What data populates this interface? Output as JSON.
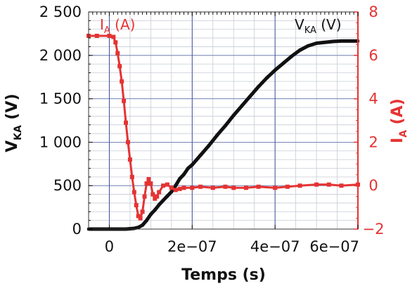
{
  "chart_data": {
    "type": "line",
    "x_label": "Temps (s)",
    "x_range": [
      -5e-08,
      6e-07
    ],
    "x_ticks": [
      0,
      2e-07,
      4e-07,
      6e-07
    ],
    "x_tick_labels": [
      "0",
      "2e−07",
      "4e−07",
      "6e−07"
    ],
    "grid": true,
    "y_left": {
      "label_main": "V",
      "label_sub": "KA",
      "label_unit": " (V)",
      "range": [
        0,
        2500
      ],
      "ticks": [
        0,
        500,
        1000,
        1500,
        2000,
        2500
      ],
      "tick_labels": [
        "0",
        "500",
        "1 000",
        "1 500",
        "2 000",
        "2 500"
      ],
      "color": "#111111"
    },
    "y_right": {
      "label_main": "I",
      "label_sub": "A",
      "label_unit": " (A)",
      "range": [
        -2,
        8
      ],
      "ticks": [
        -2,
        0,
        2,
        4,
        6,
        8
      ],
      "tick_labels": [
        "−2",
        "0",
        "2",
        "4",
        "6",
        "8"
      ],
      "color": "#e53333"
    },
    "series": [
      {
        "name": "VKA (V)",
        "name_main": "V",
        "name_sub": "KA",
        "name_unit": " (V)",
        "axis": "left",
        "color": "#111111",
        "marker": "square",
        "points": [
          [
            -5e-08,
            0
          ],
          [
            0,
            0
          ],
          [
            4e-08,
            0
          ],
          [
            6e-08,
            8
          ],
          [
            7e-08,
            20
          ],
          [
            8e-08,
            45
          ],
          [
            9e-08,
            100
          ],
          [
            1e-07,
            170
          ],
          [
            1.1e-07,
            220
          ],
          [
            1.2e-07,
            280
          ],
          [
            1.3e-07,
            330
          ],
          [
            1.4e-07,
            380
          ],
          [
            1.5e-07,
            430
          ],
          [
            1.6e-07,
            500
          ],
          [
            1.7e-07,
            580
          ],
          [
            1.8e-07,
            630
          ],
          [
            1.9e-07,
            700
          ],
          [
            2e-07,
            740
          ],
          [
            2.2e-07,
            850
          ],
          [
            2.4e-07,
            960
          ],
          [
            2.6e-07,
            1080
          ],
          [
            2.8e-07,
            1190
          ],
          [
            3e-07,
            1310
          ],
          [
            3.2e-07,
            1420
          ],
          [
            3.4e-07,
            1530
          ],
          [
            3.6e-07,
            1640
          ],
          [
            3.8e-07,
            1740
          ],
          [
            4e-07,
            1830
          ],
          [
            4.2e-07,
            1910
          ],
          [
            4.4e-07,
            1990
          ],
          [
            4.6e-07,
            2060
          ],
          [
            4.8e-07,
            2110
          ],
          [
            5e-07,
            2140
          ],
          [
            5.2e-07,
            2150
          ],
          [
            5.4e-07,
            2160
          ],
          [
            5.6e-07,
            2165
          ],
          [
            5.8e-07,
            2165
          ],
          [
            6e-07,
            2165
          ]
        ]
      },
      {
        "name": "IA (A)",
        "name_main": "I",
        "name_sub": "A",
        "name_unit": " (A)",
        "axis": "right",
        "color": "#e53333",
        "marker": "square",
        "points": [
          [
            -5e-08,
            6.9
          ],
          [
            -3e-08,
            6.9
          ],
          [
            0,
            6.9
          ],
          [
            1e-08,
            6.85
          ],
          [
            1.5e-08,
            6.6
          ],
          [
            2e-08,
            6.1
          ],
          [
            2.5e-08,
            5.5
          ],
          [
            3e-08,
            4.8
          ],
          [
            3.5e-08,
            3.9
          ],
          [
            4e-08,
            2.9
          ],
          [
            4.5e-08,
            2.0
          ],
          [
            5e-08,
            1.2
          ],
          [
            5.5e-08,
            0.4
          ],
          [
            6e-08,
            -0.3
          ],
          [
            6.5e-08,
            -0.9
          ],
          [
            7e-08,
            -1.4
          ],
          [
            7.5e-08,
            -1.5
          ],
          [
            8e-08,
            -1.2
          ],
          [
            8.5e-08,
            -0.5
          ],
          [
            9e-08,
            0.1
          ],
          [
            9.5e-08,
            0.3
          ],
          [
            1e-07,
            0.1
          ],
          [
            1.05e-07,
            -0.4
          ],
          [
            1.1e-07,
            -0.6
          ],
          [
            1.15e-07,
            -0.5
          ],
          [
            1.2e-07,
            -0.3
          ],
          [
            1.3e-07,
            0.0
          ],
          [
            1.4e-07,
            0.05
          ],
          [
            1.5e-07,
            -0.1
          ],
          [
            1.6e-07,
            -0.2
          ],
          [
            1.7e-07,
            -0.15
          ],
          [
            1.8e-07,
            -0.1
          ],
          [
            2e-07,
            -0.1
          ],
          [
            2.2e-07,
            -0.05
          ],
          [
            2.5e-07,
            -0.1
          ],
          [
            2.8e-07,
            -0.05
          ],
          [
            3e-07,
            -0.1
          ],
          [
            3.3e-07,
            -0.1
          ],
          [
            3.6e-07,
            -0.05
          ],
          [
            4e-07,
            -0.1
          ],
          [
            4.3e-07,
            -0.05
          ],
          [
            4.6e-07,
            0.0
          ],
          [
            5e-07,
            0.05
          ],
          [
            5.3e-07,
            0.05
          ],
          [
            5.6e-07,
            0.0
          ],
          [
            6e-07,
            0.05
          ]
        ]
      }
    ]
  }
}
